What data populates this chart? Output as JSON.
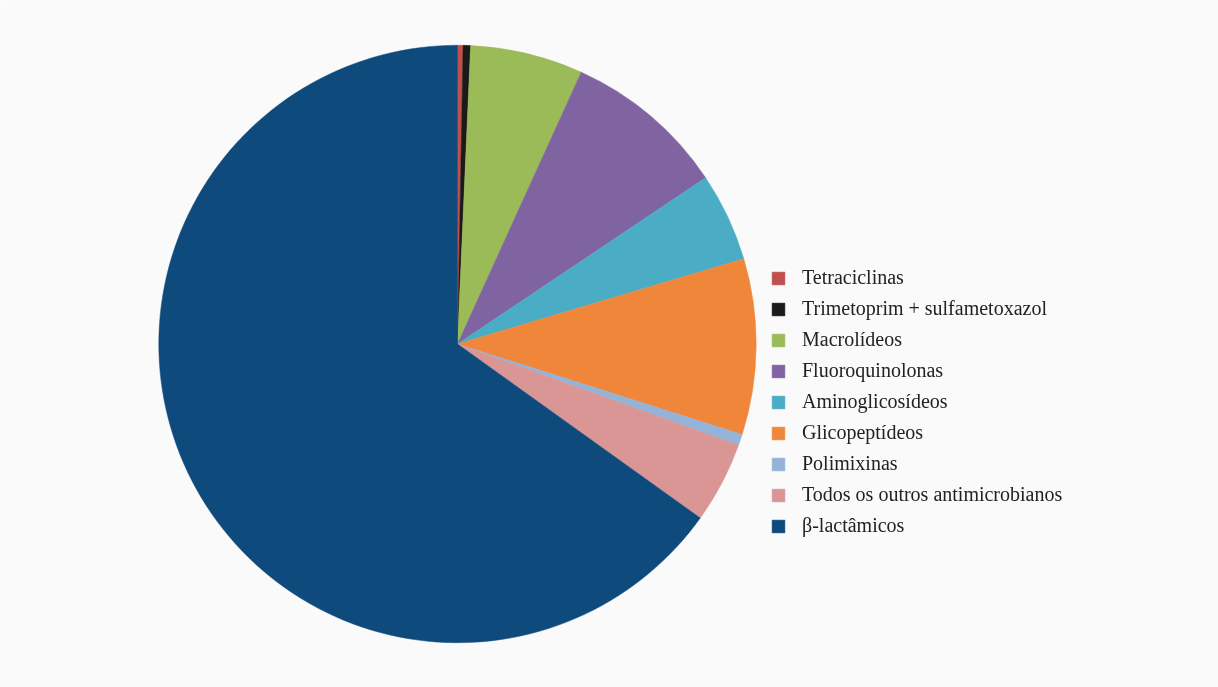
{
  "chart_data": {
    "type": "pie",
    "categories": [
      "Tetraciclinas",
      "Trimetoprim + sulfametoxazol",
      "Macrolídeos",
      "Fluoroquinolonas",
      "Aminoglicosídeos",
      "Glicopeptídeos",
      "Polimixinas",
      "Todos os outros antimicrobianos",
      "β-lactâmicos"
    ],
    "values": [
      0.3,
      0.4,
      6.1,
      8.8,
      4.8,
      9.5,
      0.6,
      4.4,
      65.1
    ],
    "colors": [
      "#c0504d",
      "#1a1a1a",
      "#9bbb59",
      "#8064a2",
      "#4bacc6",
      "#f0863a",
      "#95b3d7",
      "#d99694",
      "#0e4a7c"
    ],
    "legend": "right"
  }
}
